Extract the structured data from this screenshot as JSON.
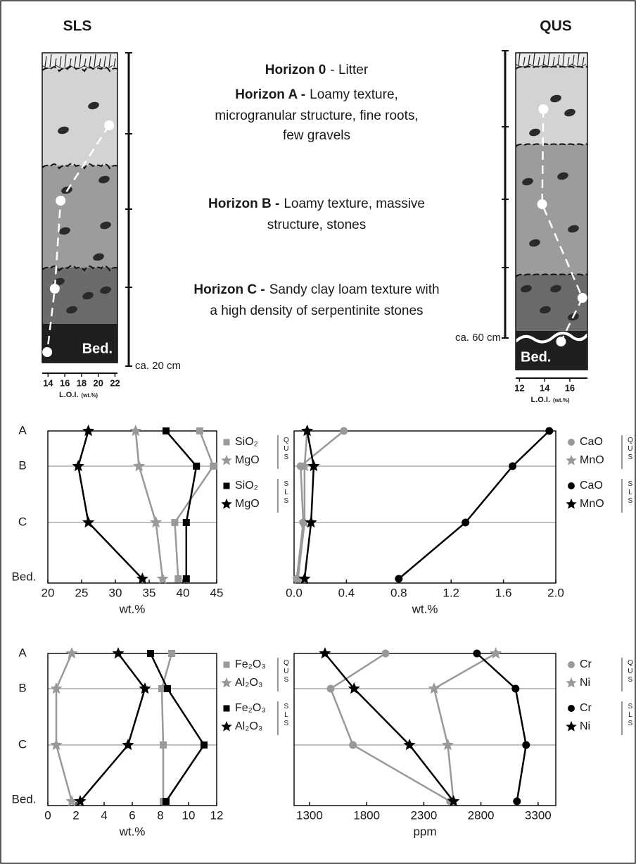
{
  "profiles": [
    {
      "title": "SLS",
      "axis_label": "L.O.I.",
      "axis_unit": "(wt.%)",
      "xlim": [
        13.3,
        22.3
      ],
      "xticks": [
        14,
        16,
        18,
        20,
        22
      ],
      "depth_label": "ca. 20 cm",
      "bedrock_label": "Bed.",
      "loi": [
        21.3,
        15.5,
        14.8,
        13.9
      ]
    },
    {
      "title": "QUS",
      "axis_label": "L.O.I.",
      "axis_unit": "(wt.%)",
      "xlim": [
        11.7,
        17.4
      ],
      "xticks": [
        12,
        14,
        16
      ],
      "depth_label": "ca. 60 cm",
      "bedrock_label": "Bed.",
      "loi": [
        13.9,
        13.8,
        17.0,
        15.3
      ]
    }
  ],
  "horizons": [
    {
      "name": "Horizon 0",
      "text": [
        "- Litter"
      ]
    },
    {
      "name": "Horizon A -",
      "text": [
        "Loamy texture,",
        "microgranular structure, fine roots,",
        "few gravels"
      ]
    },
    {
      "name": "Horizon B -",
      "text": [
        "Loamy texture, massive",
        "structure, stones"
      ]
    },
    {
      "name": "Horizon C -",
      "text": [
        "Sandy clay loam texture with",
        "a high density of serpentinite stones"
      ]
    }
  ],
  "chart_data": [
    {
      "type": "line",
      "categories": [
        "A",
        "B",
        "C",
        "Bed."
      ],
      "xlabel": "wt.%",
      "xlim": [
        20,
        45
      ],
      "xticks": [
        20,
        25,
        30,
        35,
        40,
        45
      ],
      "grid": true,
      "legend_groups": [
        "QUS",
        "SLS"
      ],
      "series": [
        {
          "name": "SiO₂",
          "color": "#999999",
          "marker": "square",
          "values": [
            42.5,
            44.5,
            38.8,
            39.3
          ]
        },
        {
          "name": "MgO",
          "color": "#999999",
          "marker": "star",
          "values": [
            33,
            33.5,
            36,
            37
          ]
        },
        {
          "name": "SiO₂",
          "color": "#000000",
          "marker": "square",
          "values": [
            37.5,
            42,
            40.5,
            40.5
          ]
        },
        {
          "name": "MgO",
          "color": "#000000",
          "marker": "star",
          "values": [
            26,
            24.5,
            26,
            34
          ]
        }
      ]
    },
    {
      "type": "line",
      "categories": [
        "A",
        "B",
        "C",
        "Bed."
      ],
      "xlabel": "wt.%",
      "xlim": [
        0,
        2
      ],
      "xticks": [
        {
          "value": 0,
          "label": "0.0"
        },
        0.4,
        0.8,
        1.2,
        1.6,
        {
          "value": 2,
          "label": "2.0"
        }
      ],
      "grid": true,
      "legend_groups": [
        "QUS",
        "SLS"
      ],
      "series": [
        {
          "name": "CaO",
          "color": "#999999",
          "marker": "circle",
          "values": [
            0.38,
            0.05,
            0.07,
            0.02
          ]
        },
        {
          "name": "MnO",
          "color": "#999999",
          "marker": "star",
          "values": [
            0.1,
            0.08,
            0.08,
            0.03
          ]
        },
        {
          "name": "CaO",
          "color": "#000000",
          "marker": "circle",
          "values": [
            1.95,
            1.67,
            1.31,
            0.8
          ]
        },
        {
          "name": "MnO",
          "color": "#000000",
          "marker": "star",
          "values": [
            0.1,
            0.15,
            0.13,
            0.08
          ]
        }
      ]
    },
    {
      "type": "line",
      "categories": [
        "A",
        "B",
        "C",
        "Bed."
      ],
      "xlabel": "wt.%",
      "xlim": [
        0,
        12
      ],
      "xticks": [
        0,
        2,
        4,
        6,
        8,
        10,
        12
      ],
      "grid": true,
      "legend_groups": [
        "QUS",
        "SLS"
      ],
      "series": [
        {
          "name": "Fe₂O₃",
          "color": "#999999",
          "marker": "square",
          "values": [
            8.8,
            8.1,
            8.2,
            8.2
          ]
        },
        {
          "name": "Al₂O₃",
          "color": "#999999",
          "marker": "star",
          "values": [
            1.7,
            0.6,
            0.6,
            1.7
          ]
        },
        {
          "name": "Fe₂O₃",
          "color": "#000000",
          "marker": "square",
          "values": [
            7.3,
            8.5,
            11.1,
            8.4
          ]
        },
        {
          "name": "Al₂O₃",
          "color": "#000000",
          "marker": "star",
          "values": [
            5,
            6.9,
            5.7,
            2.3
          ]
        }
      ]
    },
    {
      "type": "line",
      "categories": [
        "A",
        "B",
        "C",
        "Bed."
      ],
      "xlabel": "ppm",
      "xlim": [
        1165,
        3455
      ],
      "xticks": [
        1300,
        1800,
        2300,
        2800,
        3300
      ],
      "grid": true,
      "legend_groups": [
        "QUS",
        "SLS"
      ],
      "series": [
        {
          "name": "Cr",
          "color": "#999999",
          "marker": "circle",
          "values": [
            1965,
            1485,
            1680,
            2530
          ]
        },
        {
          "name": "Ni",
          "color": "#999999",
          "marker": "star",
          "values": [
            2930,
            2390,
            2510,
            2560
          ]
        },
        {
          "name": "Cr",
          "color": "#000000",
          "marker": "circle",
          "values": [
            2765,
            3103,
            3195,
            3115
          ]
        },
        {
          "name": "Ni",
          "color": "#000000",
          "marker": "star",
          "values": [
            1435,
            1690,
            2175,
            2560
          ]
        }
      ]
    }
  ]
}
